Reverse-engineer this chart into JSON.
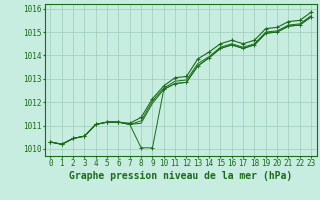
{
  "title": "Graphe pression niveau de la mer (hPa)",
  "background_color": "#c7ece0",
  "grid_color": "#9ecfba",
  "line_color": "#1a6b1a",
  "x_hours": [
    0,
    1,
    2,
    3,
    4,
    5,
    6,
    7,
    8,
    9,
    10,
    11,
    12,
    13,
    14,
    15,
    16,
    17,
    18,
    19,
    20,
    21,
    22,
    23
  ],
  "line_main": [
    1010.3,
    1010.2,
    1010.45,
    1010.55,
    1011.05,
    1011.15,
    1011.15,
    1011.1,
    1011.35,
    1012.15,
    1012.7,
    1013.05,
    1013.1,
    1013.85,
    1014.15,
    1014.5,
    1014.65,
    1014.5,
    1014.65,
    1015.15,
    1015.2,
    1015.45,
    1015.5,
    1015.85
  ],
  "line_low1": [
    1010.3,
    1010.2,
    1010.45,
    1010.55,
    1011.05,
    1011.15,
    1011.15,
    1011.05,
    1011.2,
    1012.05,
    1012.6,
    1012.9,
    1012.95,
    1013.65,
    1013.95,
    1014.35,
    1014.5,
    1014.35,
    1014.5,
    1015.0,
    1015.05,
    1015.3,
    1015.35,
    1015.7
  ],
  "line_low2": [
    1010.3,
    1010.2,
    1010.45,
    1010.55,
    1011.05,
    1011.15,
    1011.15,
    1011.05,
    1011.1,
    1011.95,
    1012.55,
    1012.8,
    1012.85,
    1013.55,
    1013.9,
    1014.3,
    1014.45,
    1014.3,
    1014.45,
    1014.95,
    1015.0,
    1015.25,
    1015.3,
    1015.65
  ],
  "line_dip": [
    1010.3,
    1010.2,
    1010.45,
    1010.55,
    1011.05,
    1011.15,
    1011.15,
    1011.05,
    1010.05,
    1010.05,
    1012.55,
    1012.8,
    1012.85,
    1013.55,
    1013.9,
    1014.3,
    1014.45,
    1014.3,
    1014.45,
    1014.95,
    1015.0,
    1015.25,
    1015.3,
    1015.65
  ],
  "ylim": [
    1009.7,
    1016.2
  ],
  "yticks": [
    1010,
    1011,
    1012,
    1013,
    1014,
    1015,
    1016
  ],
  "title_fontsize": 7,
  "tick_fontsize": 5.5
}
